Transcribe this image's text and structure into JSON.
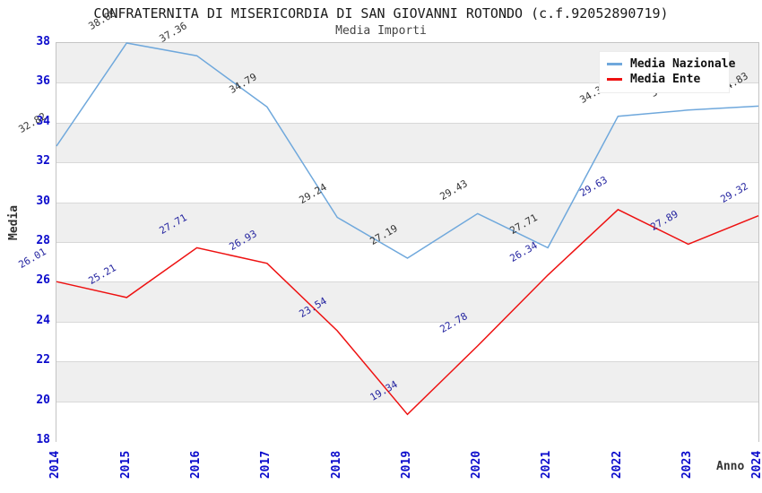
{
  "title": "CONFRATERNITA DI MISERICORDIA DI SAN GIOVANNI ROTONDO (c.f.92052890719)",
  "subtitle": "Media Importi",
  "axes": {
    "y_title": "Media",
    "x_title": "Anno",
    "y_ticks": [
      38,
      36,
      34,
      32,
      30,
      28,
      26,
      24,
      22,
      20,
      18
    ],
    "x_ticks": [
      "2014",
      "2015",
      "2016",
      "2017",
      "2018",
      "2019",
      "2020",
      "2021",
      "2022",
      "2023",
      "2024"
    ]
  },
  "legend": {
    "items": [
      {
        "label": "Media Nazionale",
        "color": "#6fa8dc"
      },
      {
        "label": "Media Ente",
        "color": "#ee1111"
      }
    ]
  },
  "colors": {
    "band_gray": "#efefef",
    "band_white": "#ffffff",
    "gridline": "#d8d8d8",
    "plot_border": "#c4c4c4",
    "tick_label_blue": "#0b0bcc",
    "nazionale_line": "#6fa8dc",
    "ente_line": "#ee1111",
    "nazionale_point_label": "#333333",
    "ente_point_label": "#2525a0"
  },
  "chart_data": {
    "type": "line",
    "title": "CONFRATERNITA DI MISERICORDIA DI SAN GIOVANNI ROTONDO (c.f.92052890719)",
    "subtitle": "Media Importi",
    "xlabel": "Anno",
    "ylabel": "Media",
    "x": [
      "2014",
      "2015",
      "2016",
      "2017",
      "2018",
      "2019",
      "2020",
      "2021",
      "2022",
      "2023",
      "2024"
    ],
    "series": [
      {
        "name": "Media Nazionale",
        "color": "#6fa8dc",
        "label_color": "#333333",
        "values": [
          32.82,
          38.0,
          37.36,
          34.79,
          29.24,
          27.19,
          29.43,
          27.71,
          34.32,
          34.63,
          34.83
        ]
      },
      {
        "name": "Media Ente",
        "color": "#ee1111",
        "label_color": "#2525a0",
        "values": [
          26.01,
          25.21,
          27.71,
          26.93,
          23.54,
          19.34,
          22.78,
          26.34,
          29.63,
          27.89,
          29.32
        ]
      }
    ],
    "ylim": [
      18,
      38
    ],
    "ytick_step": 2,
    "grid": "horizontal gridlines with alternating gray/white bands",
    "point_labels": "each point labeled with its value, rotated -30deg",
    "legend_position": "top-right inside plot"
  }
}
